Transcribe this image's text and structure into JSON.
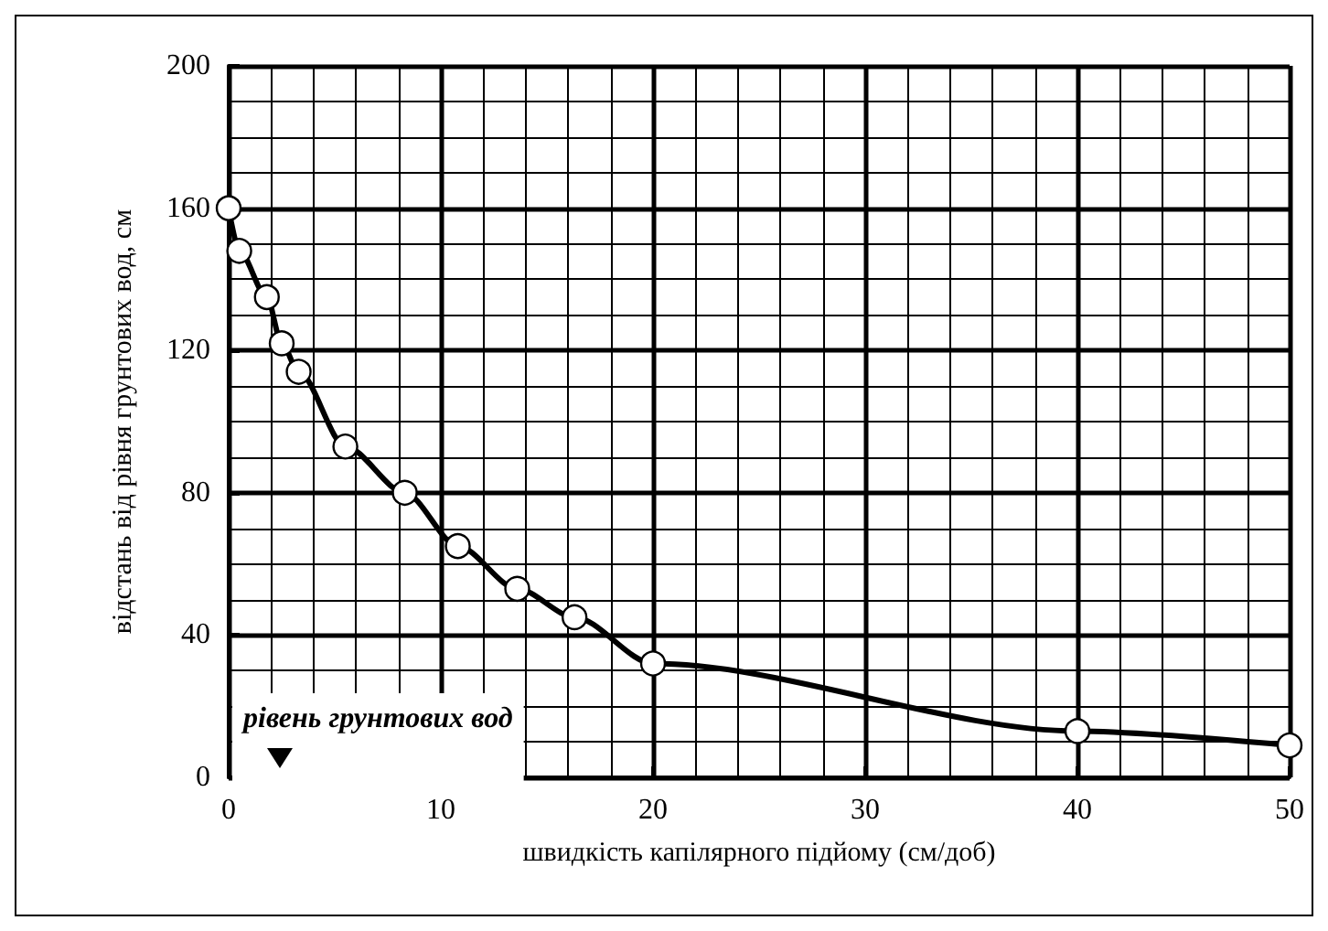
{
  "chart_data": {
    "type": "line",
    "xlabel": "швидкість капілярного підйому (см/доб)",
    "ylabel": "відстань від рівня грунтових вод, см",
    "x": [
      0,
      0.5,
      1.8,
      2.5,
      3.3,
      5.5,
      8.3,
      10.8,
      13.6,
      16.3,
      20,
      40,
      50
    ],
    "series": [
      {
        "color": "#000000",
        "values": [
          160,
          148,
          135,
          122,
          114,
          93,
          80,
          65,
          53,
          45,
          32,
          13,
          9
        ]
      }
    ],
    "xlim": [
      0,
      50
    ],
    "xticks": [
      0,
      10,
      20,
      30,
      40,
      50
    ],
    "ylim": [
      0,
      200
    ],
    "yticks": [
      0,
      40,
      80,
      120,
      160,
      200
    ],
    "grid": true,
    "marker": "circle",
    "line_style": "solid",
    "annotations": [
      "рівень грунтових вод"
    ]
  }
}
